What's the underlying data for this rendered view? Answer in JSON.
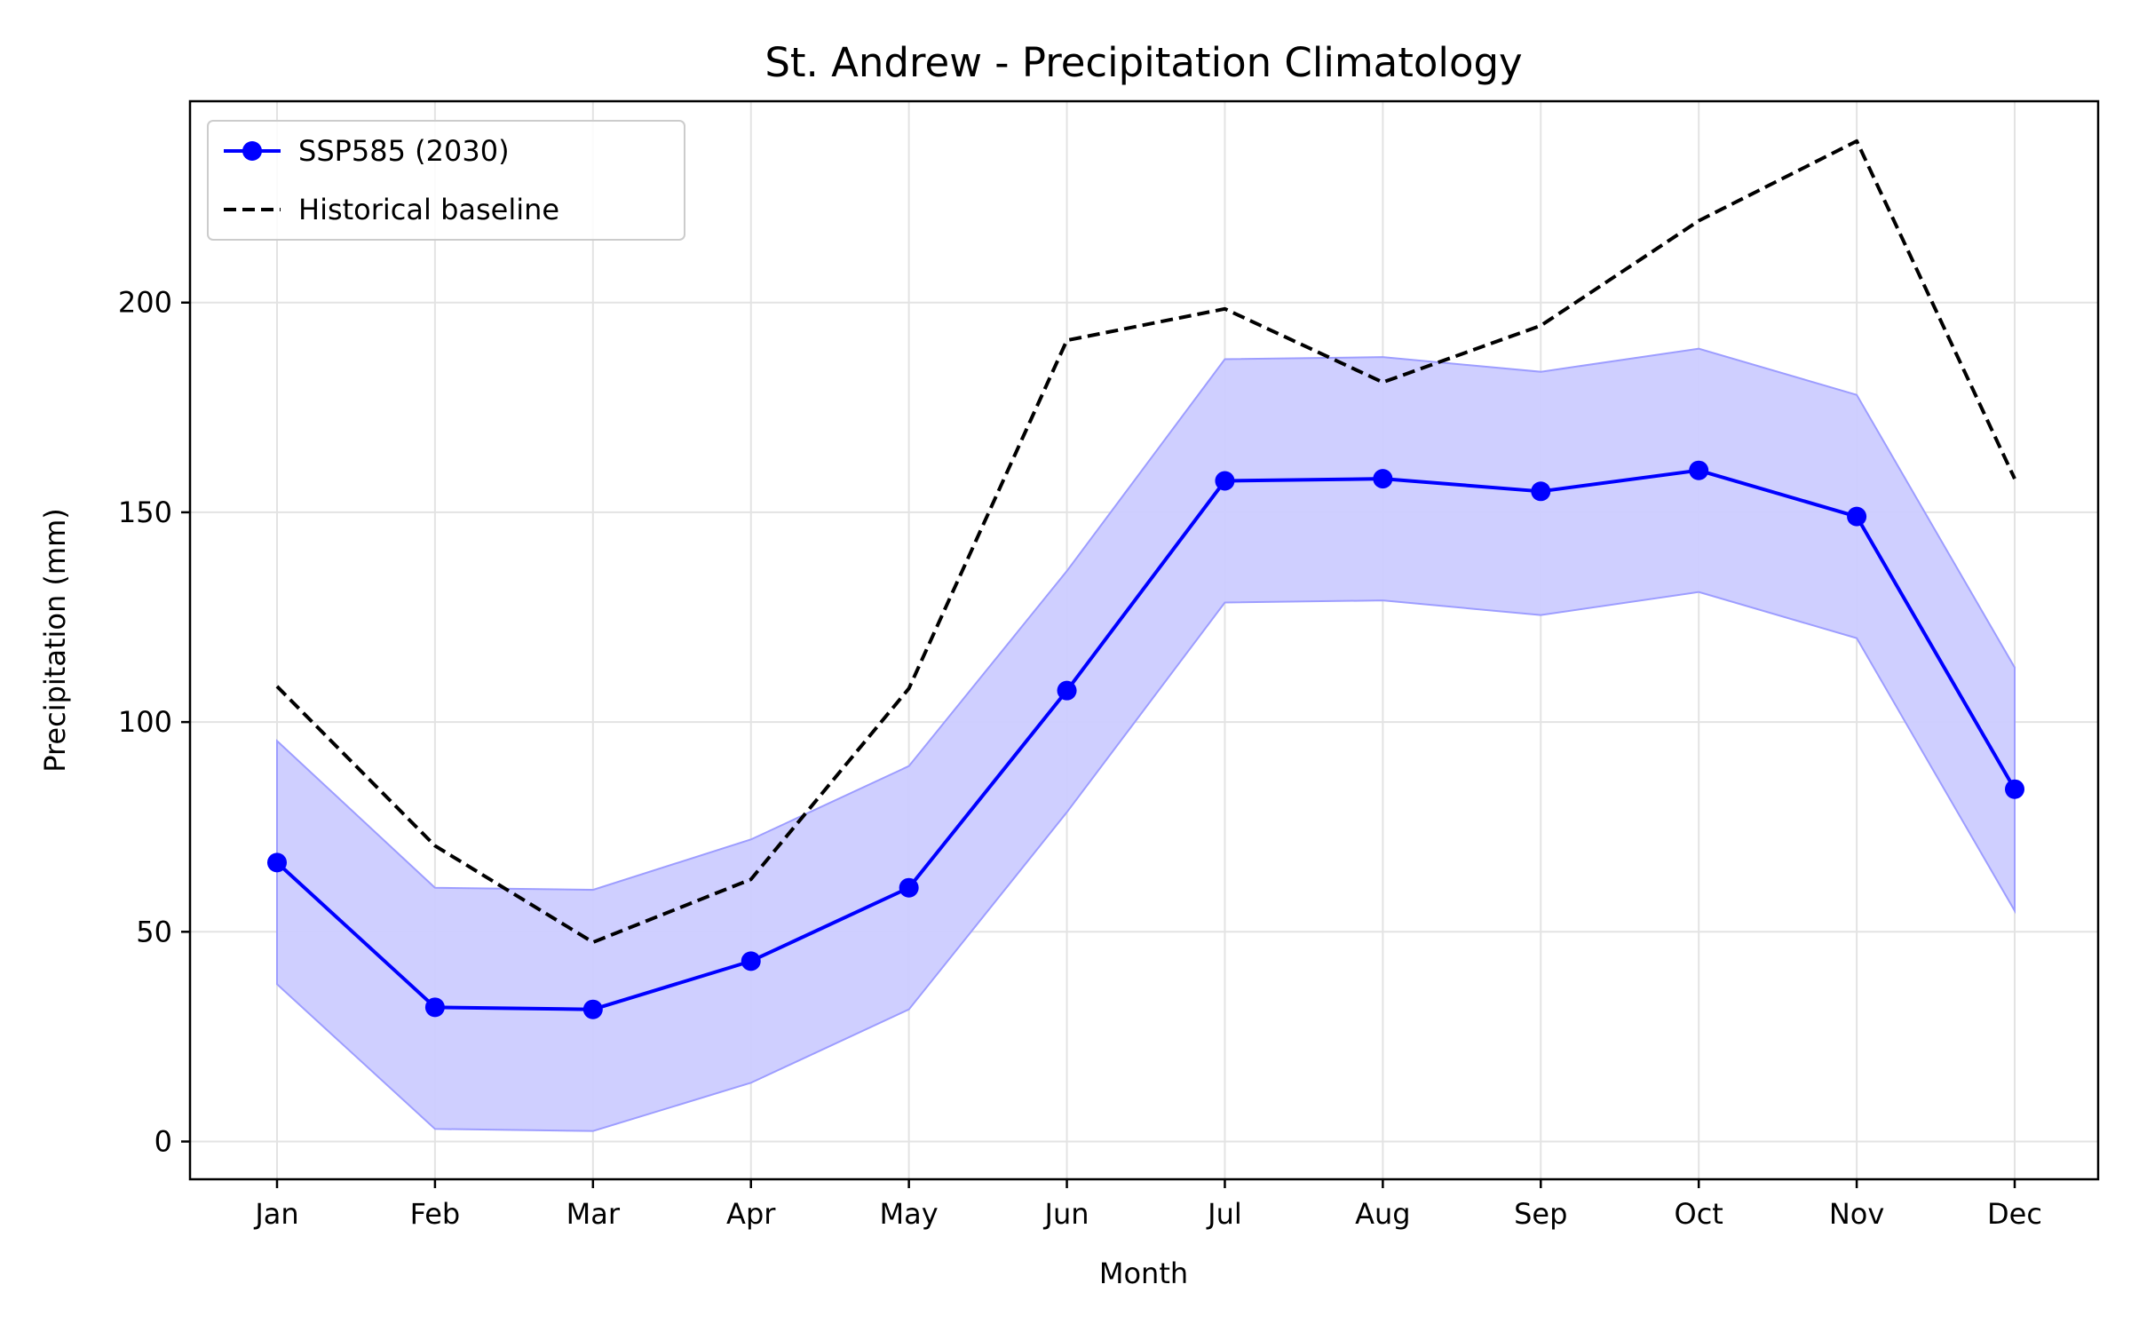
{
  "chart_data": {
    "type": "line",
    "title": "St. Andrew - Precipitation Climatology",
    "xlabel": "Month",
    "ylabel": "Precipitation (mm)",
    "categories": [
      "Jan",
      "Feb",
      "Mar",
      "Apr",
      "May",
      "Jun",
      "Jul",
      "Aug",
      "Sep",
      "Oct",
      "Nov",
      "Dec"
    ],
    "ylim": [
      -9,
      248
    ],
    "yticks": [
      0,
      50,
      100,
      150,
      200
    ],
    "grid": true,
    "legend_position": "top-left",
    "series": [
      {
        "name": "SSP585 (2030)",
        "style": "solid-with-markers",
        "color": "#0000ff",
        "values": [
          66.5,
          32,
          31.5,
          43,
          60.5,
          107.5,
          157.5,
          158,
          155,
          160,
          149,
          84
        ],
        "band_upper": [
          95.5,
          60.5,
          60,
          72,
          89.5,
          136,
          186.5,
          187,
          183.5,
          189,
          178,
          113
        ],
        "band_lower": [
          37.5,
          3,
          2.5,
          14,
          31.5,
          78.5,
          128.5,
          129,
          125.5,
          131,
          120,
          55
        ],
        "band_color": "#ccccff"
      },
      {
        "name": "Historical baseline",
        "style": "dashed",
        "color": "#000000",
        "values": [
          108.5,
          70.5,
          47.5,
          62.5,
          108,
          191,
          198.5,
          181,
          194.5,
          219.5,
          238.5,
          158
        ]
      }
    ]
  }
}
